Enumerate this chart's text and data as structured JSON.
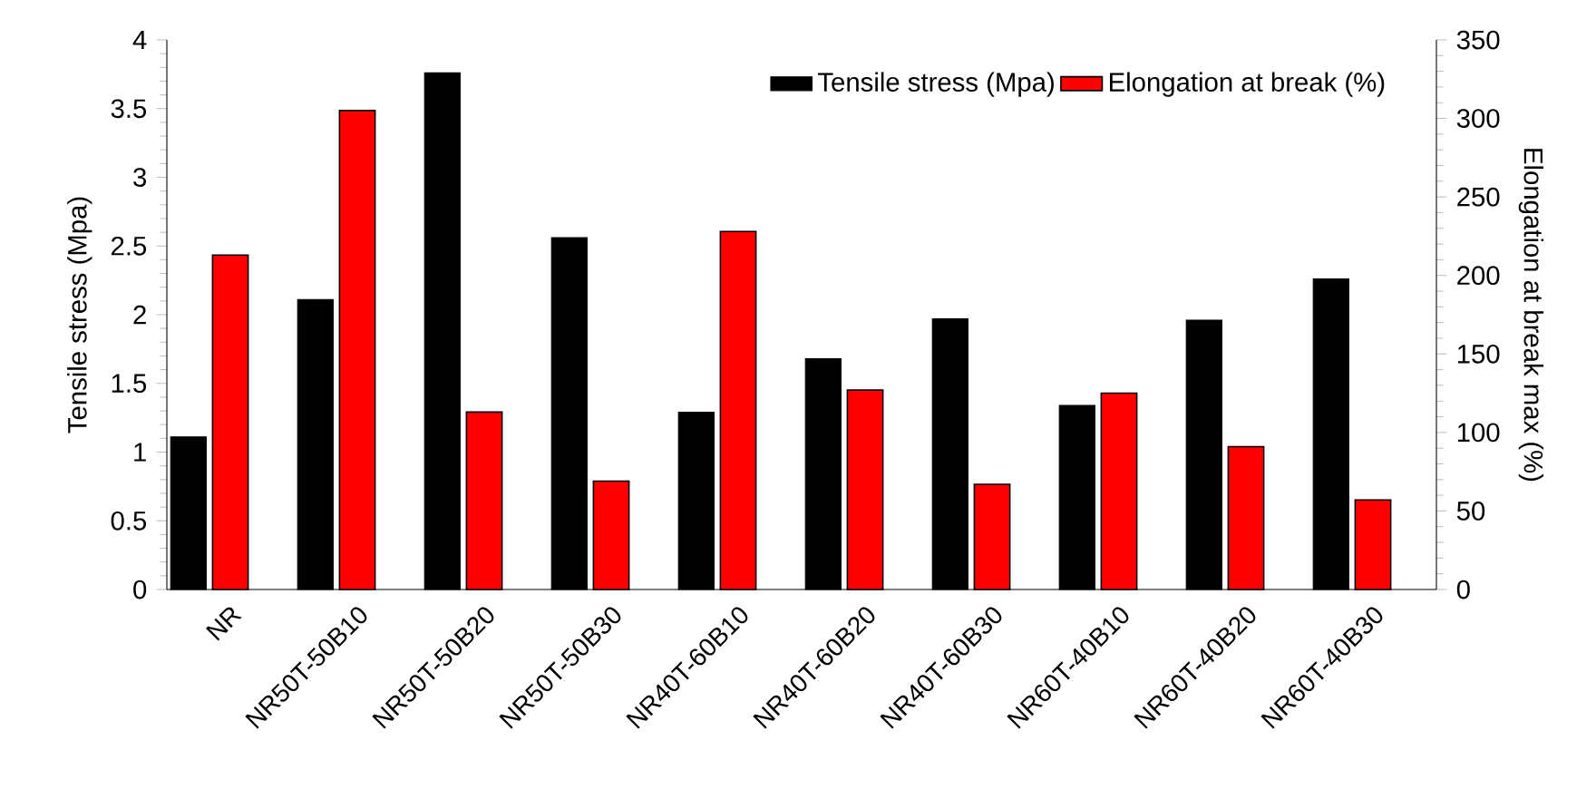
{
  "chart_data": {
    "type": "bar",
    "xlabel": null,
    "ylabel": "Tensile stress (Mpa)",
    "y2label": "Elongation at break max (%)",
    "categories": [
      "NR",
      "NR50T-50B10",
      "NR50T-50B20",
      "NR50T-50B30",
      "NR40T-60B10",
      "NR40T-60B20",
      "NR40T-60B30",
      "NR60T-40B10",
      "NR60T-40B20",
      "NR60T-40B30"
    ],
    "series": [
      {
        "name": "Tensile stress (Mpa)",
        "color": "#000000",
        "values": [
          1.11,
          2.11,
          3.76,
          2.56,
          1.29,
          1.68,
          1.97,
          1.34,
          1.96,
          2.26
        ]
      },
      {
        "name": "Elongation at break (%)",
        "color": "#ff0000",
        "axis": "y2",
        "values": [
          213,
          305,
          113,
          69,
          228,
          127,
          67,
          125,
          91,
          57
        ]
      }
    ],
    "ylim": [
      0,
      4
    ],
    "yticks": [
      0,
      0.5,
      1,
      1.5,
      2,
      2.5,
      3,
      3.5,
      4
    ],
    "y2lim": [
      0,
      350
    ],
    "y2ticks": [
      0,
      50,
      100,
      150,
      200,
      250,
      300,
      350
    ],
    "legend": "top right"
  }
}
